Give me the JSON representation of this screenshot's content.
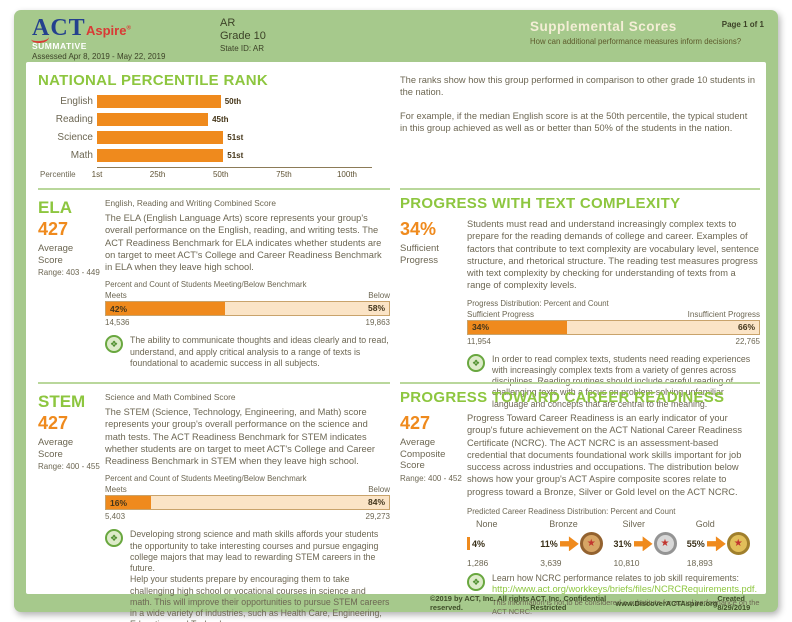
{
  "header": {
    "logo_act": "ACT",
    "logo_aspire": "Aspire",
    "summative": "SUMMATIVE",
    "assessed": "Assessed Apr 8, 2019 - May 22, 2019",
    "region": "AR",
    "grade": "Grade 10",
    "state_id": "State ID: AR",
    "title": "Supplemental Scores",
    "subtitle": "How can additional performance measures inform decisions?",
    "page": "Page 1 of 1"
  },
  "npr": {
    "title": "NATIONAL PERCENTILE RANK",
    "note_p1": "The ranks show how this group performed in comparison to other grade 10 students in the nation.",
    "note_p2": "For example, if the median English score is at the 50th percentile, the typical student in this group achieved as well as or better than 50% of the students in the nation."
  },
  "chart_data": {
    "type": "bar",
    "orientation": "horizontal",
    "title": "NATIONAL PERCENTILE RANK",
    "categories": [
      "English",
      "Reading",
      "Science",
      "Math"
    ],
    "values": [
      50,
      45,
      51,
      51
    ],
    "value_labels": [
      "50th",
      "45th",
      "51st",
      "51st"
    ],
    "xlabel": "Percentile",
    "x_ticks": [
      "1st",
      "25th",
      "50th",
      "75th",
      "100th"
    ],
    "xlim": [
      1,
      100
    ],
    "bar_color": "#ef8a1d",
    "legend": "none",
    "grid": false
  },
  "ela": {
    "title": "ELA",
    "score": "427",
    "score_label": "Average Score",
    "range": "Range: 403 - 449",
    "subtitle": "English, Reading and Writing Combined Score",
    "body": "The ELA (English Language Arts) score represents your group's overall performance on the English, reading, and writing tests. The ACT Readiness Benchmark for ELA indicates whether students are on target to meet ACT's College and Career Readiness Benchmark in ELA when they leave high school.",
    "bar_title": "Percent and Count of Students Meeting/Below Benchmark",
    "meets_label": "Meets",
    "below_label": "Below",
    "meets_pct": "42%",
    "below_pct": "58%",
    "meets_value": 42,
    "meets_count": "14,536",
    "below_count": "19,863",
    "callout": "The ability to communicate thoughts and ideas clearly and to read, understand, and apply critical analysis to a range of texts is foundational to academic success in all subjects."
  },
  "text_complexity": {
    "title": "PROGRESS WITH TEXT COMPLEXITY",
    "score": "34%",
    "score_label": "Sufficient Progress",
    "body": "Students must read and understand increasingly complex texts to prepare for the reading demands of college and career. Examples of factors that contribute to text complexity are vocabulary level, sentence structure, and rhetorical structure. The reading test measures progress with text complexity by checking for understanding of texts from a range of complexity levels.",
    "bar_title": "Progress Distribution: Percent and Count",
    "left_label": "Sufficient Progress",
    "right_label": "Insufficient Progress",
    "left_pct": "34%",
    "right_pct": "66%",
    "left_value": 34,
    "left_count": "11,954",
    "right_count": "22,765",
    "callout": "In order to read complex texts, students need reading experiences with increasingly complex texts from a variety of genres across disciplines. Reading routines should include careful reading of challenging texts with a focus on problem-solving unfamiliar language and concepts that are central to the meaning."
  },
  "stem": {
    "title": "STEM",
    "score": "427",
    "score_label": "Average Score",
    "range": "Range: 400 - 455",
    "subtitle": "Science and Math Combined Score",
    "body": "The STEM (Science, Technology, Engineering, and Math) score represents your group's overall performance on the science and math tests. The ACT Readiness Benchmark for STEM indicates whether students are on target to meet ACT's College and Career Readiness Benchmark in STEM when they leave high school.",
    "bar_title": "Percent and Count of Students Meeting/Below Benchmark",
    "meets_label": "Meets",
    "below_label": "Below",
    "meets_pct": "16%",
    "below_pct": "84%",
    "meets_value": 16,
    "meets_count": "5,403",
    "below_count": "29,273",
    "callout_p1": "Developing strong science and math skills affords your students the opportunity to take interesting courses and pursue engaging college majors that may lead to rewarding STEM careers in the future.",
    "callout_p2": "Help your students prepare by encouraging them to take challenging high school or vocational courses in science and math. This will improve their opportunities to pursue STEM careers in a wide variety of industries, such as Health Care, Engineering, Education, and Technology."
  },
  "career": {
    "title": "PROGRESS TOWARD CAREER READINESS",
    "score": "427",
    "score_label": "Average Composite Score",
    "range": "Range: 400 - 452",
    "body": "Progress Toward Career Readiness is an early indicator of your group's future achievement on the ACT National Career Readiness Certificate (NCRC). The ACT NCRC is an assessment-based credential that documents foundational work skills important for job success across industries and occupations. The distribution below shows how your group's ACT Aspire composite scores relate to progress toward a Bronze, Silver or Gold level on the ACT NCRC.",
    "dist_title": "Predicted Career Readiness Distribution: Percent and Count",
    "levels": [
      {
        "label": "None",
        "pct": "4%",
        "count": "1,286",
        "medal": null
      },
      {
        "label": "Bronze",
        "pct": "11%",
        "count": "3,639",
        "medal": "bronze"
      },
      {
        "label": "Silver",
        "pct": "31%",
        "count": "10,810",
        "medal": "silver"
      },
      {
        "label": "Gold",
        "pct": "55%",
        "count": "18,893",
        "medal": "gold"
      }
    ],
    "callout": "Learn how NCRC performance relates to job skill requirements:",
    "link": "http://www.act.org/workkeys/briefs/files/NCRCRequirements.pdf.",
    "disclaimer": "This information is not to be considered a substitute for actual performance on the ACT NCRC."
  },
  "footer": {
    "copyright": "©2019 by ACT, Inc. All rights reserved.",
    "confidential": "ACT, Inc. Confidential Restricted",
    "website": "www.DiscoverACTAspire.org",
    "created": "Created 8/29/2019"
  },
  "colors": {
    "frame_green": "#a6c98c",
    "heading_green": "#8dc63f",
    "accent_orange": "#ef8a1d",
    "bar_light": "#fbe4c6",
    "body_olive": "#6d6753",
    "logo_navy": "#24408e",
    "logo_red": "#d93a35"
  }
}
